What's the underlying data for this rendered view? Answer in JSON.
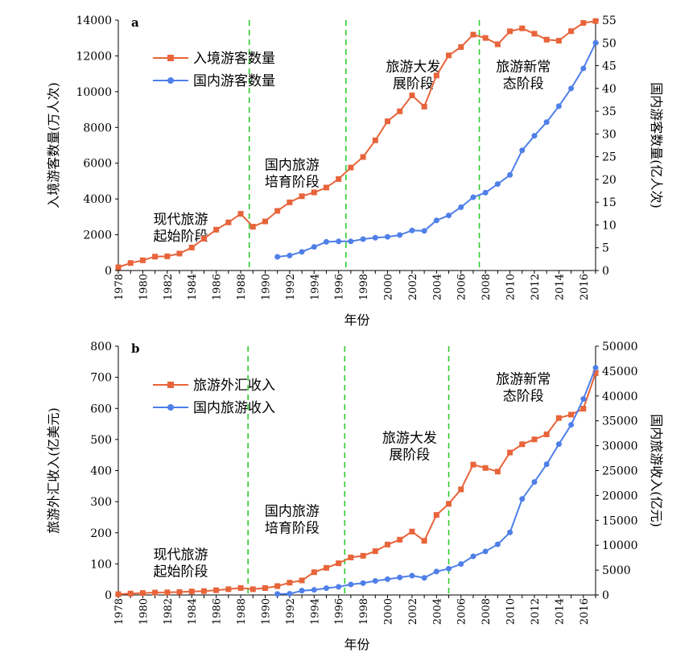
{
  "colors": {
    "inbound": "#E8643A",
    "domestic": "#4F7FE8",
    "divider": "#2ECC2E",
    "axis": "#000000"
  },
  "chart_data": [
    {
      "panel": "a",
      "type": "line",
      "xlabel": "年份",
      "ylabel_left": "入境游客数量(万人次)",
      "ylabel_right": "国内游客数量(亿人次)",
      "xlim": [
        1978,
        2017
      ],
      "ylim_left": [
        0,
        14000
      ],
      "ylim_right": [
        0,
        55
      ],
      "yticks_left": [
        "0",
        "2000",
        "4000",
        "6000",
        "8000",
        "10000",
        "12000",
        "14000"
      ],
      "yticks_right": [
        "0",
        "5",
        "10",
        "15",
        "20",
        "25",
        "30",
        "35",
        "40",
        "45",
        "50",
        "55"
      ],
      "xticks": [
        "1978",
        "1980",
        "1982",
        "1984",
        "1986",
        "1988",
        "1990",
        "1992",
        "1994",
        "1996",
        "1998",
        "2000",
        "2002",
        "2004",
        "2006",
        "2008",
        "2010",
        "2012",
        "2014",
        "2016"
      ],
      "dividers": [
        1988.7,
        1996.6,
        2007.5
      ],
      "annotations": [
        {
          "lines": [
            "现代旅游",
            "起始阶段"
          ],
          "x": 1983.1,
          "y_left": 2600
        },
        {
          "lines": [
            "国内旅游",
            "培育阶段"
          ],
          "x": 1992.2,
          "y_left": 5650
        },
        {
          "lines": [
            "旅游大发",
            "展阶段"
          ],
          "x": 2002.1,
          "y_left": 11150
        },
        {
          "lines": [
            "旅游新常",
            "态阶段"
          ],
          "x": 2011.1,
          "y_left": 11150
        }
      ],
      "legend": {
        "position": "top-left"
      },
      "series": [
        {
          "name": "入境游客数量",
          "axis": "left",
          "marker": "square",
          "x": [
            1978,
            1979,
            1980,
            1981,
            1982,
            1983,
            1984,
            1985,
            1986,
            1987,
            1988,
            1989,
            1990,
            1991,
            1992,
            1993,
            1994,
            1995,
            1996,
            1997,
            1998,
            1999,
            2000,
            2001,
            2002,
            2003,
            2004,
            2005,
            2006,
            2007,
            2008,
            2009,
            2010,
            2011,
            2012,
            2013,
            2014,
            2015,
            2016,
            2017
          ],
          "values": [
            181,
            420,
            570,
            777,
            793,
            948,
            1285,
            1783,
            2282,
            2690,
            3169,
            2450,
            2746,
            3335,
            3812,
            4153,
            4368,
            4639,
            5113,
            5759,
            6348,
            7280,
            8344,
            8901,
            9791,
            9166,
            10904,
            12029,
            12494,
            13187,
            13003,
            12648,
            13376,
            13542,
            13241,
            12908,
            12850,
            13382,
            13844,
            13948
          ]
        },
        {
          "name": "国内游客数量",
          "axis": "right",
          "marker": "circle",
          "x": [
            1991,
            1992,
            1993,
            1994,
            1995,
            1996,
            1997,
            1998,
            1999,
            2000,
            2001,
            2002,
            2003,
            2004,
            2005,
            2006,
            2007,
            2008,
            2009,
            2010,
            2011,
            2012,
            2013,
            2014,
            2015,
            2016,
            2017
          ],
          "values": [
            3.0,
            3.3,
            4.1,
            5.2,
            6.3,
            6.4,
            6.4,
            6.9,
            7.2,
            7.4,
            7.8,
            8.8,
            8.7,
            11.0,
            12.1,
            13.9,
            16.1,
            17.1,
            19.0,
            21.0,
            26.4,
            29.6,
            32.6,
            36.1,
            40.0,
            44.4,
            50.0
          ]
        }
      ]
    },
    {
      "panel": "b",
      "type": "line",
      "xlabel": "年份",
      "ylabel_left": "旅游外汇收入(亿美元)",
      "ylabel_right": "国内旅游收入(亿元)",
      "xlim": [
        1978,
        2017
      ],
      "ylim_left": [
        0,
        800
      ],
      "ylim_right": [
        0,
        50000
      ],
      "yticks_left": [
        "0",
        "100",
        "200",
        "300",
        "400",
        "500",
        "600",
        "700",
        "800"
      ],
      "yticks_right": [
        "0",
        "5000",
        "10000",
        "15000",
        "20000",
        "25000",
        "30000",
        "35000",
        "40000",
        "45000",
        "50000"
      ],
      "xticks": [
        "1978",
        "1980",
        "1982",
        "1984",
        "1986",
        "1988",
        "1990",
        "1992",
        "1994",
        "1996",
        "1998",
        "2000",
        "2002",
        "2004",
        "2006",
        "2008",
        "2010",
        "2012",
        "2014",
        "2016"
      ],
      "dividers": [
        1988.6,
        1996.5,
        2005.0
      ],
      "annotations": [
        {
          "lines": [
            "现代旅游",
            "起始阶段"
          ],
          "x": 1983.1,
          "y_left": 115
        },
        {
          "lines": [
            "国内旅游",
            "培育阶段"
          ],
          "x": 1992.2,
          "y_left": 255
        },
        {
          "lines": [
            "旅游大发",
            "展阶段"
          ],
          "x": 2001.8,
          "y_left": 490
        },
        {
          "lines": [
            "旅游新常",
            "态阶段"
          ],
          "x": 2011.1,
          "y_left": 680
        }
      ],
      "legend": {
        "position": "top-left"
      },
      "series": [
        {
          "name": "旅游外汇收入",
          "axis": "left",
          "marker": "square",
          "x": [
            1978,
            1979,
            1980,
            1981,
            1982,
            1983,
            1984,
            1985,
            1986,
            1987,
            1988,
            1989,
            1990,
            1991,
            1992,
            1993,
            1994,
            1995,
            1996,
            1997,
            1998,
            1999,
            2000,
            2001,
            2002,
            2003,
            2004,
            2005,
            2006,
            2007,
            2008,
            2009,
            2010,
            2011,
            2012,
            2013,
            2014,
            2015,
            2016,
            2017
          ],
          "values": [
            2.6,
            4.5,
            6.2,
            7.8,
            8.4,
            9.4,
            11.3,
            12.5,
            15.3,
            18.6,
            22.5,
            18.6,
            22.2,
            28.5,
            39.5,
            46.8,
            73.2,
            87.3,
            102.0,
            120.7,
            126.0,
            140.9,
            162.2,
            177.9,
            203.9,
            174.1,
            257.4,
            293.0,
            339.5,
            419.2,
            408.4,
            396.8,
            458.1,
            484.6,
            500.3,
            516.6,
            569.1,
            580.0,
            599.0,
            713.2
          ]
        },
        {
          "name": "国内旅游收入",
          "axis": "right",
          "marker": "circle",
          "x": [
            1991,
            1992,
            1993,
            1994,
            1995,
            1996,
            1997,
            1998,
            1999,
            2000,
            2001,
            2002,
            2003,
            2004,
            2005,
            2006,
            2007,
            2008,
            2009,
            2010,
            2011,
            2012,
            2013,
            2014,
            2015,
            2016,
            2017
          ],
          "values": [
            200,
            250,
            864,
            1024,
            1376,
            1638,
            2113,
            2391,
            2832,
            3176,
            3522,
            3878,
            3442,
            4711,
            5286,
            6230,
            7771,
            8749,
            10184,
            12580,
            19306,
            22706,
            26276,
            30312,
            34195,
            39390,
            45661
          ]
        }
      ]
    }
  ]
}
